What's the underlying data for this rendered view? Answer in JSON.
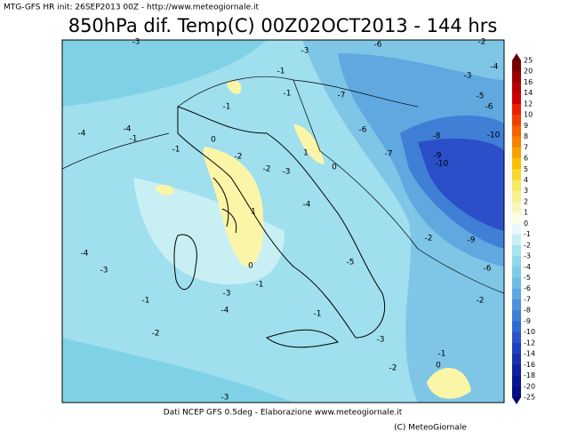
{
  "header": {
    "init": "MTG-GFS HR init: 26SEP2013 00Z  -  http://www.meteogiornale.it",
    "title": "850hPa dif. Temp(C) 00Z02OCT2013 - 144 hrs"
  },
  "colorbar": {
    "labels": [
      25,
      20,
      16,
      14,
      12,
      10,
      9,
      8,
      7,
      6,
      5,
      4,
      3,
      2,
      1,
      0,
      -1,
      -2,
      -3,
      -4,
      -5,
      -6,
      -7,
      -8,
      -9,
      -10,
      -12,
      -14,
      -16,
      -18,
      -20,
      -25
    ]
  },
  "contour_labels": [
    -3,
    -3,
    -6,
    -2,
    -1,
    -7,
    -4,
    -3,
    -5,
    -6,
    -1,
    -1,
    -4,
    -4,
    -1,
    -6,
    -8,
    -10,
    -1,
    0,
    -7,
    -9,
    -10,
    -2,
    1,
    0,
    -3,
    -2,
    -4,
    1,
    -2,
    -9,
    -4,
    -3,
    -5,
    0,
    -6,
    -1,
    -3,
    -1,
    -4,
    -1,
    -2,
    -2,
    -3,
    -2,
    -1,
    0,
    -3
  ],
  "footer": {
    "source": "Dati NCEP GFS 0.5deg - Elaborazione www.meteogiornale.it",
    "copyright": "(C) MeteoGiornale"
  }
}
